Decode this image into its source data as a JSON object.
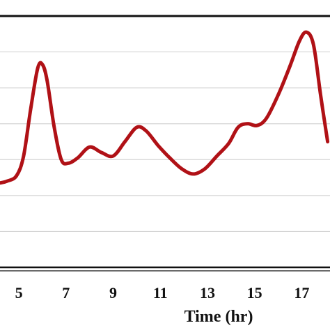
{
  "chart_data": {
    "type": "line",
    "xlabel": "Time (hr)",
    "ylabel": "",
    "title": "",
    "x_ticks": [
      "5",
      "7",
      "9",
      "11",
      "13",
      "15",
      "17"
    ],
    "xlim": [
      4.2,
      18.2
    ],
    "ylim": [
      0,
      7
    ],
    "grid": true,
    "series": [
      {
        "color": "#b01116",
        "x": [
          4.2,
          4.5,
          4.9,
          5.2,
          5.5,
          5.8,
          6.0,
          6.2,
          6.5,
          6.8,
          7.1,
          7.5,
          8.0,
          8.5,
          9.0,
          9.5,
          10.0,
          10.4,
          10.9,
          11.4,
          11.9,
          12.4,
          12.9,
          13.4,
          13.9,
          14.3,
          14.7,
          15.1,
          15.5,
          16.0,
          16.5,
          16.9,
          17.2,
          17.5,
          17.8,
          18.1
        ],
        "y": [
          2.35,
          2.4,
          2.55,
          3.1,
          4.4,
          5.55,
          5.65,
          5.2,
          3.9,
          3.0,
          2.9,
          3.05,
          3.35,
          3.2,
          3.1,
          3.5,
          3.9,
          3.8,
          3.4,
          3.05,
          2.75,
          2.6,
          2.75,
          3.1,
          3.45,
          3.9,
          4.0,
          3.95,
          4.15,
          4.8,
          5.6,
          6.3,
          6.55,
          6.2,
          4.8,
          3.5
        ]
      }
    ],
    "gridlines_y": [
      1,
      2,
      3,
      4,
      5,
      6
    ]
  }
}
